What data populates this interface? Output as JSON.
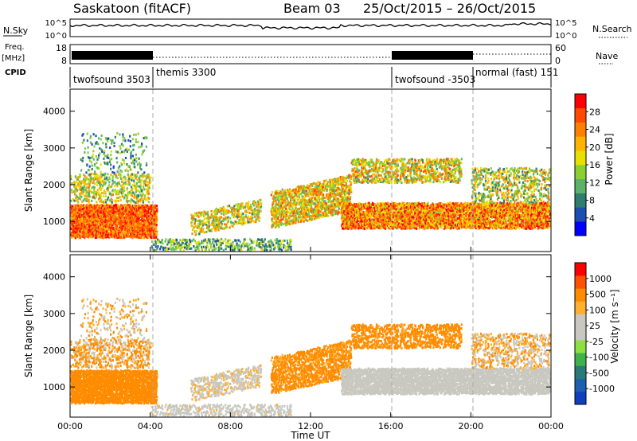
{
  "header": {
    "station": "Saskatoon (fitACF)",
    "beam": "Beam 03",
    "date_range": "25/Oct/2015 – 26/Oct/2015"
  },
  "strips": {
    "nsky_label": "N.Sky",
    "nsearch_label": "N.Search",
    "nsky_ticks": [
      "10^5",
      "10^0"
    ],
    "nsearch_ticks": [
      "10^5",
      "10^0"
    ],
    "freq_label": "Freq.",
    "freq_unit": "[MHz]",
    "freq_ticks": [
      "18",
      "8"
    ],
    "nave_label": "Nave",
    "nave_ticks": [
      "60",
      "0"
    ],
    "cpid_label": "CPID"
  },
  "cpid_segments": [
    {
      "label": "twofsound 3503",
      "start_hour": 0
    },
    {
      "label": "themis 3300",
      "start_hour": 4
    },
    {
      "label": "twofsound -3503",
      "start_hour": 16
    },
    {
      "label": "normal (fast) 151",
      "start_hour": 20
    }
  ],
  "colors": {
    "power_bar": [
      "#0000ff",
      "#1d4fb0",
      "#2e7d6e",
      "#5bb36a",
      "#8ad02e",
      "#e8e000",
      "#ffb300",
      "#ff8000",
      "#ff4a00",
      "#ff0000"
    ],
    "velocity_bar": [
      "#ff0000",
      "#ff5200",
      "#ff8c00",
      "#ffb030",
      "#c8c8c0",
      "#c8c8c0",
      "#8ce040",
      "#3cb44b",
      "#2a7a7a",
      "#1d5fb0",
      "#1040c0"
    ]
  },
  "chart_data": [
    {
      "type": "heatmap",
      "name": "power",
      "ylabel": "Slant Range [km]",
      "ylim": [
        180,
        4600
      ],
      "yticks": [
        "4000",
        "3000",
        "2000",
        "1000"
      ],
      "xlim_hours": [
        0,
        24
      ],
      "colorbar_label": "Power [dB]",
      "colorbar_ticks": [
        "28",
        "24",
        "20",
        "16",
        "12",
        "8",
        "4"
      ],
      "colorbar_range": [
        0,
        30
      ]
    },
    {
      "type": "heatmap",
      "name": "velocity",
      "ylabel": "Slant Range [km]",
      "ylim": [
        180,
        4600
      ],
      "yticks": [
        "4000",
        "3000",
        "2000",
        "1000"
      ],
      "xlim_hours": [
        0,
        24
      ],
      "xticks": [
        "00:00",
        "04:00",
        "08:00",
        "12:00",
        "16:00",
        "20:00",
        "00:00"
      ],
      "xlabel": "Time UT",
      "colorbar_label": "Velocity [m s⁻¹]",
      "colorbar_ticks": [
        "1000",
        "500",
        "100",
        "25",
        "-25",
        "-100",
        "-500",
        "-1000"
      ]
    }
  ]
}
